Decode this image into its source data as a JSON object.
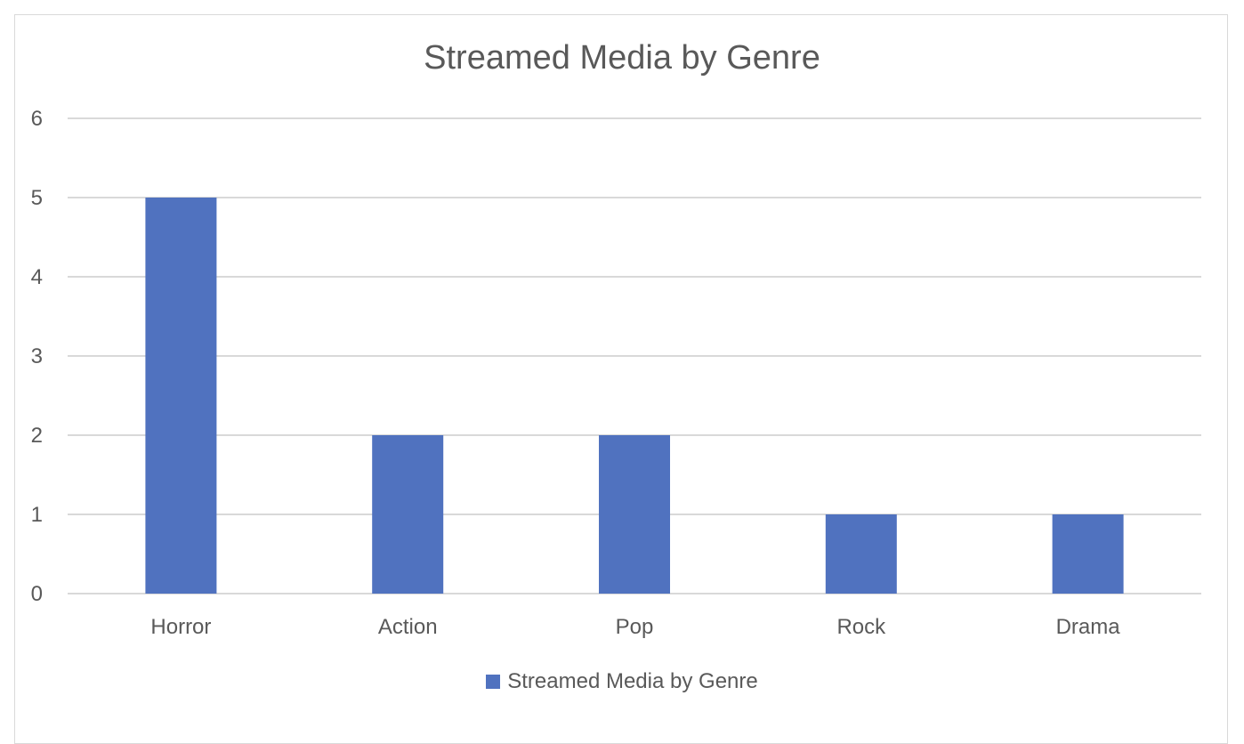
{
  "chart_data": {
    "type": "bar",
    "title": "Streamed Media by Genre",
    "categories": [
      "Horror",
      "Action",
      "Pop",
      "Rock",
      "Drama"
    ],
    "series": [
      {
        "name": "Streamed Media by Genre",
        "values": [
          5,
          2,
          2,
          1,
          1
        ],
        "color": "#5072bf"
      }
    ],
    "xlabel": "",
    "ylabel": "",
    "ylim": [
      0,
      6
    ],
    "yticks": [
      "0",
      "1",
      "2",
      "3",
      "4",
      "5",
      "6"
    ],
    "grid": true,
    "legend_position": "bottom"
  }
}
